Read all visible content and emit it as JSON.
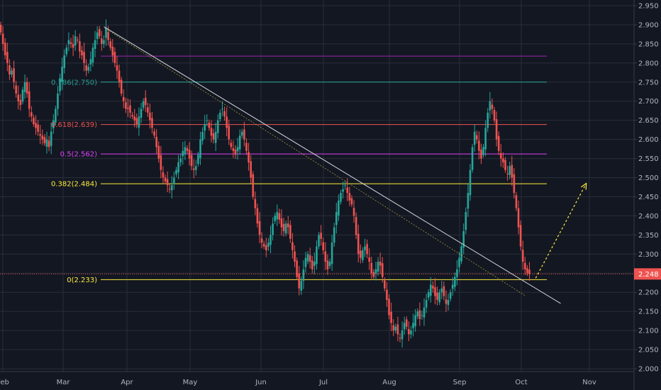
{
  "chart_data": {
    "type": "candlestick",
    "price_axis": {
      "ylim": [
        2.0,
        2.95
      ],
      "ticks": [
        "2.950",
        "2.900",
        "2.850",
        "2.800",
        "2.750",
        "2.700",
        "2.650",
        "2.600",
        "2.550",
        "2.500",
        "2.450",
        "2.400",
        "2.350",
        "2.300",
        "2.250",
        "2.200",
        "2.150",
        "2.100",
        "2.050",
        "2.000"
      ],
      "tick_values": [
        2.95,
        2.9,
        2.85,
        2.8,
        2.75,
        2.7,
        2.65,
        2.6,
        2.55,
        2.5,
        2.45,
        2.4,
        2.35,
        2.3,
        2.25,
        2.2,
        2.15,
        2.1,
        2.05,
        2.0
      ]
    },
    "time_axis": {
      "labels": [
        "Feb",
        "Mar",
        "Apr",
        "May",
        "Jun",
        "Jul",
        "Aug",
        "Sep",
        "Oct",
        "Nov"
      ]
    },
    "current_price": {
      "label": "2.248",
      "value": 2.248,
      "color": "#ef5350"
    },
    "fib_levels": [
      {
        "label": "0.786(2.750)",
        "value": 2.75,
        "color": "#26a69a"
      },
      {
        "label": "0.618(2.639)",
        "value": 2.639,
        "color": "#ef5350"
      },
      {
        "label": "0.5(2.562)",
        "value": 2.562,
        "color": "#e040fb"
      },
      {
        "label": "0.382(2.484)",
        "value": 2.484,
        "color": "#ffeb3b"
      },
      {
        "label": "0(2.233)",
        "value": 2.233,
        "color": "#ffeb3b"
      }
    ],
    "fib_top_level": {
      "value": 2.818,
      "color": "#9c27b0"
    },
    "colors": {
      "up": "#26a69a",
      "down": "#ef5350",
      "trendline": "#d1d4dc",
      "projection": "#ffeb3b",
      "grid": "#2a2e39"
    },
    "trendline": {
      "from_day": 48,
      "from_value": 2.895,
      "to_day": 250,
      "to_value": 2.18
    },
    "projection_arrow": {
      "from_day": 224,
      "from_value": 2.237,
      "to_day": 246,
      "to_value": 2.485
    },
    "closes": [
      2.88,
      2.85,
      2.82,
      2.8,
      2.77,
      2.78,
      2.75,
      2.72,
      2.7,
      2.69,
      2.73,
      2.75,
      2.72,
      2.68,
      2.66,
      2.64,
      2.63,
      2.62,
      2.61,
      2.6,
      2.59,
      2.6,
      2.58,
      2.62,
      2.65,
      2.68,
      2.72,
      2.76,
      2.79,
      2.82,
      2.84,
      2.86,
      2.85,
      2.84,
      2.87,
      2.86,
      2.83,
      2.82,
      2.8,
      2.78,
      2.79,
      2.81,
      2.84,
      2.86,
      2.88,
      2.87,
      2.85,
      2.86,
      2.89,
      2.86,
      2.84,
      2.82,
      2.8,
      2.78,
      2.75,
      2.72,
      2.7,
      2.68,
      2.68,
      2.67,
      2.66,
      2.65,
      2.64,
      2.66,
      2.68,
      2.7,
      2.69,
      2.67,
      2.65,
      2.63,
      2.61,
      2.58,
      2.55,
      2.52,
      2.5,
      2.49,
      2.48,
      2.47,
      2.48,
      2.5,
      2.52,
      2.54,
      2.55,
      2.57,
      2.58,
      2.57,
      2.55,
      2.53,
      2.52,
      2.53,
      2.56,
      2.6,
      2.62,
      2.64,
      2.65,
      2.63,
      2.61,
      2.6,
      2.62,
      2.65,
      2.67,
      2.68,
      2.66,
      2.63,
      2.6,
      2.58,
      2.57,
      2.56,
      2.58,
      2.61,
      2.62,
      2.6,
      2.57,
      2.54,
      2.5,
      2.45,
      2.42,
      2.38,
      2.35,
      2.33,
      2.32,
      2.31,
      2.33,
      2.35,
      2.38,
      2.4,
      2.41,
      2.39,
      2.37,
      2.36,
      2.38,
      2.37,
      2.34,
      2.31,
      2.28,
      2.24,
      2.21,
      2.23,
      2.26,
      2.29,
      2.3,
      2.28,
      2.26,
      2.28,
      2.32,
      2.35,
      2.34,
      2.31,
      2.28,
      2.26,
      2.28,
      2.33,
      2.37,
      2.41,
      2.44,
      2.46,
      2.47,
      2.48,
      2.46,
      2.44,
      2.43,
      2.4,
      2.35,
      2.3,
      2.29,
      2.31,
      2.32,
      2.3,
      2.28,
      2.25,
      2.24,
      2.26,
      2.28,
      2.27,
      2.24,
      2.21,
      2.18,
      2.14,
      2.12,
      2.1,
      2.11,
      2.09,
      2.08,
      2.1,
      2.12,
      2.11,
      2.09,
      2.1,
      2.12,
      2.14,
      2.15,
      2.13,
      2.14,
      2.16,
      2.18,
      2.2,
      2.22,
      2.21,
      2.19,
      2.18,
      2.2,
      2.21,
      2.19,
      2.17,
      2.18,
      2.2,
      2.22,
      2.24,
      2.26,
      2.29,
      2.32,
      2.36,
      2.41,
      2.46,
      2.52,
      2.58,
      2.62,
      2.6,
      2.57,
      2.55,
      2.58,
      2.63,
      2.67,
      2.7,
      2.68,
      2.65,
      2.6,
      2.57,
      2.55,
      2.54,
      2.52,
      2.51,
      2.53,
      2.5,
      2.46,
      2.42,
      2.37,
      2.32,
      2.28,
      2.26,
      2.25,
      2.248
    ]
  }
}
